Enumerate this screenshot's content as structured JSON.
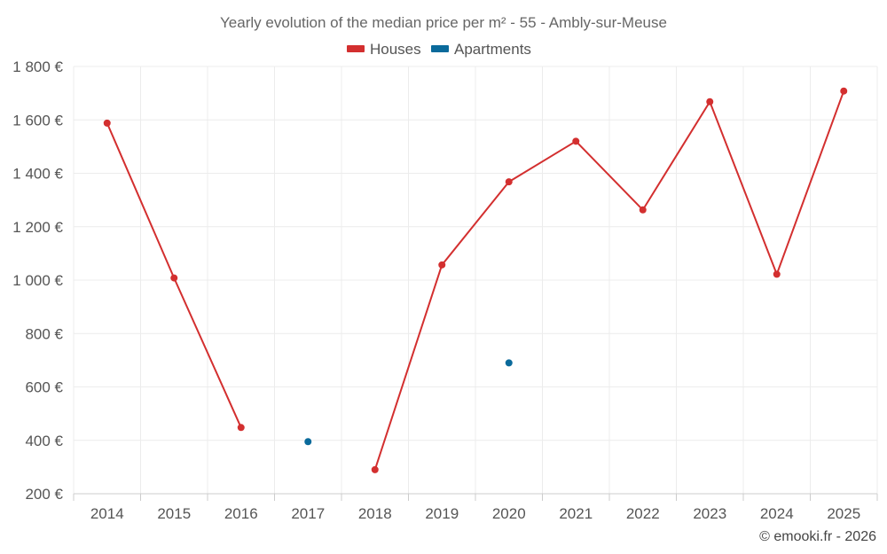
{
  "chart_data": {
    "type": "line",
    "title": "Yearly evolution of the median price per m² - 55 - Ambly-sur-Meuse",
    "categories": [
      "2014",
      "2015",
      "2016",
      "2017",
      "2018",
      "2019",
      "2020",
      "2021",
      "2022",
      "2023",
      "2024",
      "2025"
    ],
    "series": [
      {
        "name": "Houses",
        "color": "#d32f2f",
        "values": [
          1588,
          1008,
          448,
          null,
          290,
          1057,
          1368,
          1520,
          1263,
          1668,
          1022,
          1708
        ]
      },
      {
        "name": "Apartments",
        "color": "#0a6a9b",
        "values": [
          null,
          null,
          null,
          395,
          null,
          null,
          690,
          null,
          null,
          null,
          null,
          null
        ]
      }
    ],
    "ylim": [
      200,
      1800
    ],
    "yticks": [
      200,
      400,
      600,
      800,
      1000,
      1200,
      1400,
      1600,
      1800
    ],
    "ytick_labels": [
      "200 €",
      "400 €",
      "600 €",
      "800 €",
      "1 000 €",
      "1 200 €",
      "1 400 €",
      "1 600 €",
      "1 800 €"
    ],
    "xlabel": "",
    "ylabel": "",
    "grid": true,
    "legend_position": "top-center",
    "credit": "© emooki.fr - 2026"
  }
}
